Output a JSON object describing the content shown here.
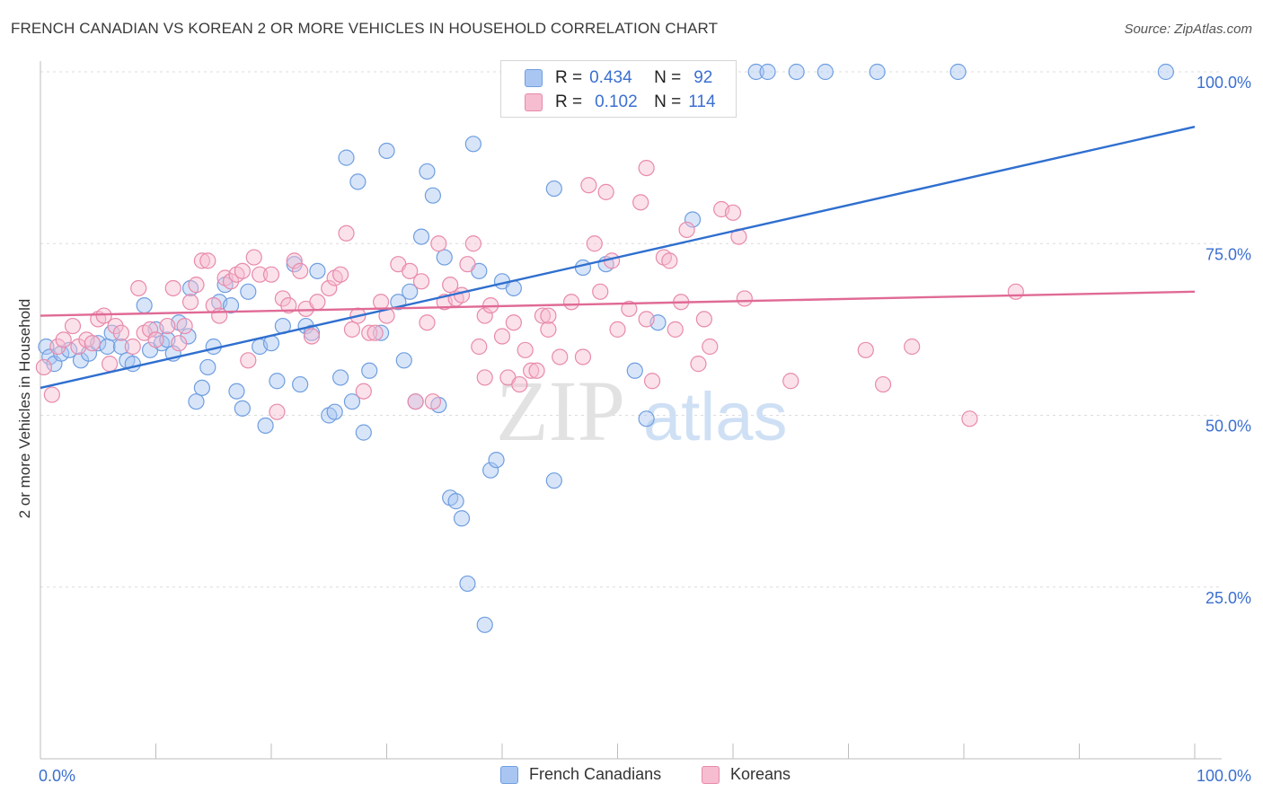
{
  "header": {
    "title": "FRENCH CANADIAN VS KOREAN 2 OR MORE VEHICLES IN HOUSEHOLD CORRELATION CHART",
    "source": "Source: ZipAtlas.com"
  },
  "legend": {
    "r_label": "R =",
    "n_label": "N =",
    "items": [
      {
        "r": "0.434",
        "n": "92",
        "color": "#a9c6f2",
        "border": "#6f9ee0"
      },
      {
        "r": "0.102",
        "n": "114",
        "color": "#f6bcd0",
        "border": "#e88aab"
      }
    ]
  },
  "bottom_legend": [
    {
      "label": "French Canadians",
      "color": "#a9c6f2",
      "border": "#6f9ee0"
    },
    {
      "label": "Koreans",
      "color": "#f6bcd0",
      "border": "#e88aab"
    }
  ],
  "watermark": {
    "zip": "ZIP",
    "atlas": "atlas"
  },
  "chart_data": {
    "type": "scatter",
    "title": "FRENCH CANADIAN VS KOREAN 2 OR MORE VEHICLES IN HOUSEHOLD CORRELATION CHART",
    "xlabel": "",
    "ylabel": "2 or more Vehicles in Household",
    "xlim": [
      0,
      100
    ],
    "ylim": [
      0,
      102
    ],
    "x_tick_labels": [
      "0.0%",
      "100.0%"
    ],
    "y_tick_values": [
      25,
      50,
      75,
      100
    ],
    "y_tick_labels": [
      "25.0%",
      "50.0%",
      "75.0%",
      "100.0%"
    ],
    "grid": true,
    "series": [
      {
        "name": "French Canadians",
        "color": "#6f9ee0",
        "fill": "#a9c6f2",
        "line_color": "#2f6fcf",
        "trend": [
          [
            0,
            54
          ],
          [
            100,
            92
          ]
        ],
        "points": [
          [
            0.5,
            60
          ],
          [
            0.8,
            58.5
          ],
          [
            1.2,
            57.5
          ],
          [
            1.8,
            59
          ],
          [
            2.5,
            59.5
          ],
          [
            3.5,
            58
          ],
          [
            4.2,
            59
          ],
          [
            5,
            60.5
          ],
          [
            5.8,
            60
          ],
          [
            6.2,
            62
          ],
          [
            7,
            60
          ],
          [
            7.5,
            58
          ],
          [
            8,
            57.5
          ],
          [
            9,
            66
          ],
          [
            9.5,
            59.5
          ],
          [
            10,
            62.5
          ],
          [
            10.5,
            60.5
          ],
          [
            11,
            61
          ],
          [
            11.5,
            59
          ],
          [
            12,
            63.5
          ],
          [
            12.8,
            61.5
          ],
          [
            13,
            68.5
          ],
          [
            13.5,
            52
          ],
          [
            14,
            54
          ],
          [
            14.5,
            57
          ],
          [
            15,
            60
          ],
          [
            15.5,
            66.5
          ],
          [
            16,
            69
          ],
          [
            16.5,
            66
          ],
          [
            17,
            53.5
          ],
          [
            17.5,
            51
          ],
          [
            18,
            68
          ],
          [
            19,
            60
          ],
          [
            19.5,
            48.5
          ],
          [
            20,
            60.5
          ],
          [
            20.5,
            55
          ],
          [
            21,
            63
          ],
          [
            22,
            72
          ],
          [
            22.5,
            54.5
          ],
          [
            23,
            63
          ],
          [
            23.5,
            62
          ],
          [
            24,
            71
          ],
          [
            25,
            50
          ],
          [
            25.5,
            50.5
          ],
          [
            26,
            55.5
          ],
          [
            26.5,
            87.5
          ],
          [
            27,
            52
          ],
          [
            27.5,
            84
          ],
          [
            28,
            47.5
          ],
          [
            28.5,
            56.5
          ],
          [
            29.5,
            62
          ],
          [
            30,
            88.5
          ],
          [
            31,
            66.5
          ],
          [
            31.5,
            58
          ],
          [
            32,
            68
          ],
          [
            32.5,
            52
          ],
          [
            33,
            76
          ],
          [
            33.5,
            85.5
          ],
          [
            34,
            82
          ],
          [
            34.5,
            51.5
          ],
          [
            35,
            73
          ],
          [
            35.5,
            38
          ],
          [
            36,
            37.5
          ],
          [
            36.5,
            35
          ],
          [
            37,
            25.5
          ],
          [
            37.5,
            89.5
          ],
          [
            38,
            71
          ],
          [
            38.5,
            19.5
          ],
          [
            39,
            42
          ],
          [
            39.5,
            43.5
          ],
          [
            40,
            69.5
          ],
          [
            41,
            68.5
          ],
          [
            44.5,
            83
          ],
          [
            44.5,
            40.5
          ],
          [
            45,
            100
          ],
          [
            47,
            71.5
          ],
          [
            48,
            100
          ],
          [
            49,
            72
          ],
          [
            50,
            100
          ],
          [
            51.5,
            56.5
          ],
          [
            52.5,
            49.5
          ],
          [
            53.5,
            63.5
          ],
          [
            56,
            100
          ],
          [
            56.5,
            78.5
          ],
          [
            57,
            100
          ],
          [
            65.5,
            100
          ],
          [
            68,
            100
          ],
          [
            72.5,
            100
          ],
          [
            79.5,
            100
          ],
          [
            97.5,
            100
          ],
          [
            62,
            100
          ],
          [
            63,
            100
          ]
        ]
      },
      {
        "name": "Koreans",
        "color": "#e88aab",
        "fill": "#f6bcd0",
        "line_color": "#e06a95",
        "trend": [
          [
            0,
            64.5
          ],
          [
            100,
            68
          ]
        ],
        "points": [
          [
            0.3,
            57
          ],
          [
            1,
            53
          ],
          [
            1.5,
            60
          ],
          [
            2,
            61
          ],
          [
            2.8,
            63
          ],
          [
            3.3,
            60
          ],
          [
            4,
            61
          ],
          [
            4.5,
            60.5
          ],
          [
            5,
            64
          ],
          [
            5.5,
            64.5
          ],
          [
            6,
            57.5
          ],
          [
            6.5,
            63
          ],
          [
            7,
            62
          ],
          [
            8,
            60
          ],
          [
            8.5,
            68.5
          ],
          [
            9,
            62
          ],
          [
            9.5,
            62.5
          ],
          [
            10,
            61
          ],
          [
            11,
            63
          ],
          [
            11.5,
            68.5
          ],
          [
            12,
            60.5
          ],
          [
            12.5,
            63
          ],
          [
            13,
            66.5
          ],
          [
            13.5,
            69
          ],
          [
            14,
            72.5
          ],
          [
            14.5,
            72.5
          ],
          [
            15,
            66
          ],
          [
            15.5,
            64.5
          ],
          [
            16,
            70
          ],
          [
            16.5,
            69.5
          ],
          [
            17,
            70.5
          ],
          [
            17.5,
            71
          ],
          [
            18,
            58
          ],
          [
            18.5,
            73
          ],
          [
            19,
            70.5
          ],
          [
            20,
            70.5
          ],
          [
            20.5,
            50.5
          ],
          [
            21,
            67
          ],
          [
            21.5,
            66
          ],
          [
            22,
            72.5
          ],
          [
            22.5,
            71
          ],
          [
            23,
            65.5
          ],
          [
            23.5,
            61.5
          ],
          [
            24,
            66.5
          ],
          [
            25,
            68.5
          ],
          [
            25.5,
            70
          ],
          [
            26,
            70.5
          ],
          [
            26.5,
            76.5
          ],
          [
            27,
            62.5
          ],
          [
            27.5,
            64.5
          ],
          [
            28,
            53.5
          ],
          [
            28.5,
            62
          ],
          [
            29,
            62
          ],
          [
            29.5,
            66.5
          ],
          [
            30,
            64.5
          ],
          [
            31,
            72
          ],
          [
            32,
            71
          ],
          [
            32.5,
            52
          ],
          [
            33,
            69.5
          ],
          [
            33.5,
            63.5
          ],
          [
            34,
            52
          ],
          [
            34.5,
            75
          ],
          [
            35,
            66.5
          ],
          [
            35.5,
            69
          ],
          [
            36,
            67
          ],
          [
            36.5,
            67.5
          ],
          [
            37,
            72
          ],
          [
            37.5,
            75
          ],
          [
            38,
            60
          ],
          [
            38.5,
            64.5
          ],
          [
            39,
            66
          ],
          [
            40,
            61.5
          ],
          [
            40.5,
            55.5
          ],
          [
            41,
            63.5
          ],
          [
            41.5,
            54.5
          ],
          [
            42,
            59.5
          ],
          [
            42.5,
            56.5
          ],
          [
            43,
            56.5
          ],
          [
            43.5,
            64.5
          ],
          [
            44,
            62.5
          ],
          [
            45,
            58.5
          ],
          [
            46,
            66.5
          ],
          [
            47,
            58.5
          ],
          [
            47.5,
            83.5
          ],
          [
            48,
            75
          ],
          [
            48.5,
            68
          ],
          [
            49,
            82.5
          ],
          [
            49.5,
            72.5
          ],
          [
            50,
            62.5
          ],
          [
            51,
            65.5
          ],
          [
            52,
            81
          ],
          [
            52.5,
            64
          ],
          [
            53,
            55
          ],
          [
            54,
            73
          ],
          [
            54.5,
            72.5
          ],
          [
            55,
            62.5
          ],
          [
            55.5,
            66.5
          ],
          [
            56,
            77
          ],
          [
            57,
            57.5
          ],
          [
            57.5,
            64
          ],
          [
            58,
            60
          ],
          [
            59,
            80
          ],
          [
            60,
            79.5
          ],
          [
            60.5,
            76
          ],
          [
            61,
            67
          ],
          [
            65,
            55
          ],
          [
            71.5,
            59.5
          ],
          [
            73,
            54.5
          ],
          [
            75.5,
            60
          ],
          [
            80.5,
            49.5
          ],
          [
            84.5,
            68
          ],
          [
            52.5,
            86
          ],
          [
            44,
            64.5
          ],
          [
            38.5,
            55.5
          ]
        ]
      }
    ]
  }
}
